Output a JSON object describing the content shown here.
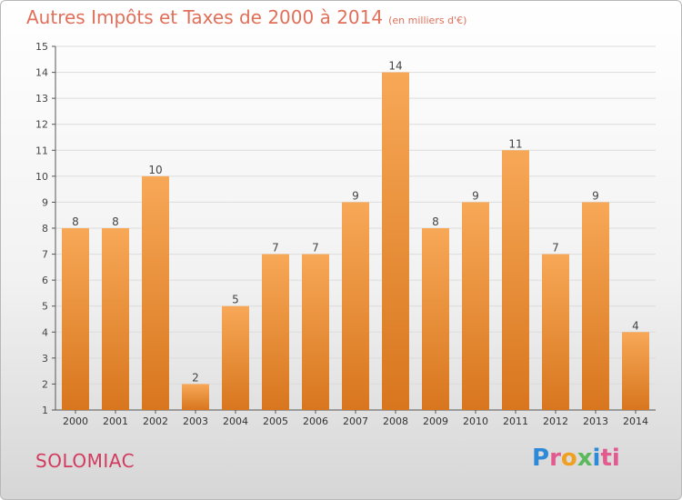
{
  "header": {
    "title": "Autres Impôts et Taxes de 2000 à 2014",
    "unit": "(en milliers d'€)"
  },
  "footer": {
    "commune": "SOLOMIAC",
    "logo_letters": [
      "P",
      "r",
      "o",
      "x",
      "i",
      "ti"
    ]
  },
  "colors": {
    "bar_top": "#f7a857",
    "bar_bottom": "#d8761e",
    "title": "#e0705a",
    "commune": "#d23a5e"
  },
  "chart_data": {
    "type": "bar",
    "title": "Autres Impôts et Taxes de 2000 à 2014",
    "subtitle": "(en milliers d'€)",
    "categories": [
      "2000",
      "2001",
      "2002",
      "2003",
      "2004",
      "2005",
      "2006",
      "2007",
      "2008",
      "2009",
      "2010",
      "2011",
      "2012",
      "2013",
      "2014"
    ],
    "values": [
      8,
      8,
      10,
      2,
      5,
      7,
      7,
      9,
      14,
      8,
      9,
      11,
      7,
      9,
      4
    ],
    "data_labels": [
      "8",
      "8",
      "10",
      "2",
      "5",
      "7",
      "7",
      "9",
      "14",
      "8",
      "9",
      "11",
      "7",
      "9",
      "4"
    ],
    "yticks": [
      "1",
      "2",
      "3",
      "4",
      "5",
      "6",
      "7",
      "8",
      "9",
      "10",
      "11",
      "12",
      "13",
      "14",
      "15"
    ],
    "ylim": [
      1,
      15
    ],
    "grid": true
  }
}
